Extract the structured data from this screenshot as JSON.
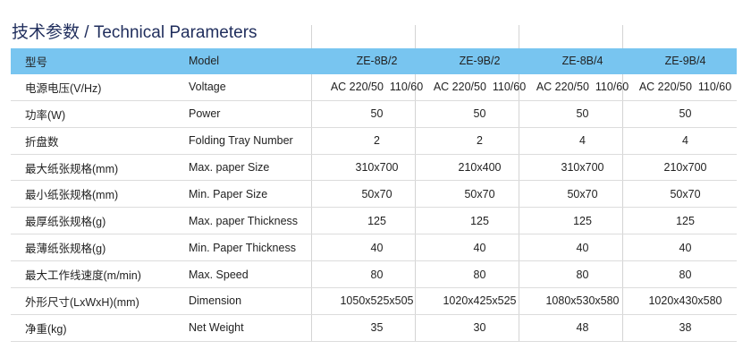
{
  "title": "技术参数 / Technical Parameters",
  "header": {
    "cn": "型号",
    "en": "Model",
    "models": [
      "ZE-8B/2",
      "ZE-9B/2",
      "ZE-8B/4",
      "ZE-9B/4"
    ]
  },
  "rows": [
    {
      "cn": "电源电压(V/Hz)",
      "en": "Voltage",
      "values": [
        "AC 220/50  110/60",
        "AC 220/50  110/60",
        "AC 220/50  110/60",
        "AC 220/50  110/60"
      ]
    },
    {
      "cn": "功率(W)",
      "en": "Power",
      "values": [
        "50",
        "50",
        "50",
        "50"
      ]
    },
    {
      "cn": "折盘数",
      "en": "Folding Tray Number",
      "values": [
        "2",
        "2",
        "4",
        "4"
      ]
    },
    {
      "cn": "最大纸张规格(mm)",
      "en": "Max. paper Size",
      "values": [
        "310x700",
        "210x400",
        "310x700",
        "210x700"
      ]
    },
    {
      "cn": "最小纸张规格(mm)",
      "en": "Min. Paper Size",
      "values": [
        "50x70",
        "50x70",
        "50x70",
        "50x70"
      ]
    },
    {
      "cn": "最厚纸张规格(g)",
      "en": "Max. paper Thickness",
      "values": [
        "125",
        "125",
        "125",
        "125"
      ]
    },
    {
      "cn": "最薄纸张规格(g)",
      "en": "Min. Paper Thickness",
      "values": [
        "40",
        "40",
        "40",
        "40"
      ]
    },
    {
      "cn": "最大工作线速度(m/min)",
      "en": "Max. Speed",
      "values": [
        "80",
        "80",
        "80",
        "80"
      ]
    },
    {
      "cn": "外形尺寸(LxWxH)(mm)",
      "en": "Dimension",
      "values": [
        "1050x525x505",
        "1020x425x525",
        "1080x530x580",
        "1020x430x580"
      ]
    },
    {
      "cn": "净重(kg)",
      "en": "Net Weight",
      "values": [
        "35",
        "30",
        "48",
        "38"
      ]
    }
  ],
  "colors": {
    "header": "#78c5f0",
    "title": "#1f2d5c"
  }
}
